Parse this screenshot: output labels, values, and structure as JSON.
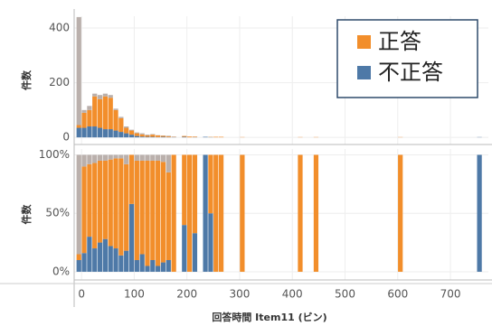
{
  "chart_data": {
    "type": "bar",
    "xlabel": "回答時間 Item11 (ビン)",
    "x": [
      -10,
      0,
      10,
      20,
      30,
      40,
      50,
      60,
      70,
      80,
      90,
      100,
      110,
      120,
      130,
      140,
      150,
      160,
      170,
      190,
      200,
      210,
      230,
      240,
      250,
      260,
      300,
      410,
      440,
      600,
      750
    ],
    "bin_width": 10,
    "xlim": [
      -14,
      772
    ],
    "xticks": [
      0,
      100,
      200,
      300,
      400,
      500,
      600,
      700
    ],
    "grid": true,
    "panels": [
      {
        "ylabel": "件数",
        "ylim": [
          -26,
          443
        ],
        "yticks": [
          0,
          200,
          400
        ],
        "series": [
          {
            "name": "不正答",
            "color": "#4e79a7",
            "values": [
              35,
              35,
              40,
              40,
              35,
              30,
              30,
              25,
              20,
              15,
              10,
              5,
              3,
              2,
              2,
              1,
              2,
              1,
              1,
              2,
              0,
              1,
              2,
              1,
              0,
              0,
              0,
              0,
              0,
              0,
              1
            ]
          },
          {
            "name": "正答",
            "color": "#f28e2b",
            "values": [
              10,
              55,
              60,
              110,
              105,
              120,
              115,
              75,
              50,
              20,
              15,
              10,
              8,
              5,
              8,
              6,
              4,
              3,
              1,
              3,
              3,
              2,
              0,
              1,
              2,
              2,
              1,
              1,
              1,
              1,
              0
            ]
          },
          {
            "name": null,
            "color": "#bab0ac",
            "values": [
              395,
              10,
              15,
              10,
              15,
              10,
              10,
              5,
              5,
              5,
              3,
              3,
              4,
              3,
              2,
              1,
              1,
              2,
              1,
              0,
              0,
              0,
              0,
              0,
              0,
              0,
              0,
              0,
              0,
              0,
              0
            ]
          }
        ]
      },
      {
        "ylabel": "件数",
        "ylim": [
          -7,
          105
        ],
        "yticks": [
          {
            "value": 0,
            "label": "0%"
          },
          {
            "value": 50,
            "label": "50%"
          },
          {
            "value": 100,
            "label": "100%"
          }
        ],
        "series": [
          {
            "name": "不正答",
            "color": "#4e79a7",
            "values": [
              10,
              16,
              30,
              20,
              25,
              28,
              22,
              20,
              14,
              18,
              58,
              10,
              15,
              5,
              10,
              5,
              8,
              10,
              0,
              40,
              0,
              33,
              100,
              50,
              0,
              0,
              0,
              0,
              0,
              0,
              100
            ]
          },
          {
            "name": "正答",
            "color": "#f28e2b",
            "values": [
              5,
              74,
              62,
              73,
              70,
              67,
              74,
              77,
              83,
              74,
              42,
              85,
              80,
              90,
              85,
              90,
              86,
              75,
              100,
              60,
              100,
              67,
              0,
              50,
              100,
              100,
              100,
              100,
              100,
              100,
              0
            ]
          },
          {
            "name": null,
            "color": "#bab0ac",
            "values": [
              85,
              10,
              8,
              7,
              5,
              5,
              4,
              3,
              3,
              8,
              0,
              5,
              5,
              5,
              5,
              5,
              6,
              15,
              0,
              0,
              0,
              0,
              0,
              0,
              0,
              0,
              0,
              0,
              0,
              0,
              0
            ]
          }
        ]
      }
    ]
  }
}
